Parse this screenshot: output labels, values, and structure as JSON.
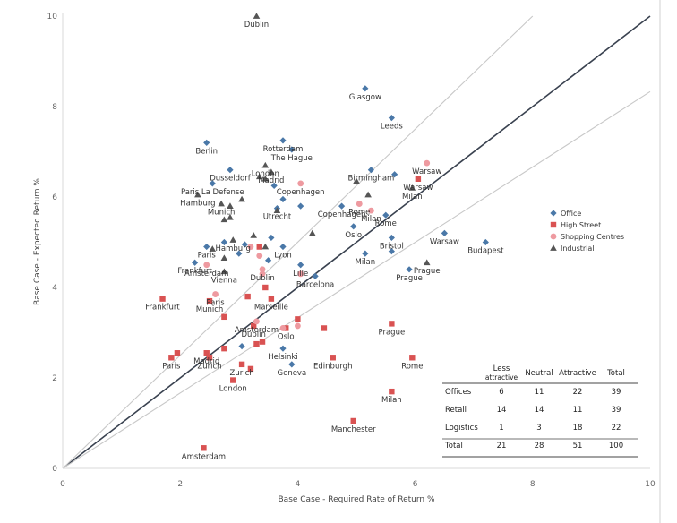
{
  "chart_data": {
    "type": "scatter",
    "title": "",
    "xlabel": "Base Case - Required Rate of Return %",
    "ylabel": "Base Case - Expected Return %",
    "xlim": [
      0,
      10
    ],
    "ylim": [
      0,
      10
    ],
    "xticks": [
      0,
      2,
      4,
      6,
      8,
      10
    ],
    "yticks": [
      0,
      2,
      4,
      6,
      8,
      10
    ],
    "grid": false,
    "legend_position": "right",
    "colors": {
      "Office": "#4a78a8",
      "High Street": "#d95252",
      "Shopping Centres": "#ee9aa0",
      "Industrial": "#555555",
      "diagonal": "#3a4250",
      "band": "#c8c8c8"
    },
    "reference_lines": [
      {
        "label": "",
        "slope": 1.0
      },
      {
        "label": "",
        "slope": 1.25
      },
      {
        "label": "",
        "slope": 0.833
      }
    ],
    "series": [
      {
        "name": "Office",
        "marker": "diamond",
        "points": [
          {
            "x": 5.15,
            "y": 8.4,
            "label": "Glasgow"
          },
          {
            "x": 5.6,
            "y": 7.75,
            "label": "Leeds"
          },
          {
            "x": 3.75,
            "y": 7.25,
            "label": "Rotterdam"
          },
          {
            "x": 3.9,
            "y": 7.05,
            "label": "The Hague"
          },
          {
            "x": 2.45,
            "y": 7.2,
            "label": "Berlin"
          },
          {
            "x": 2.85,
            "y": 6.6,
            "label": "Dusseldorf"
          },
          {
            "x": 2.55,
            "y": 6.3,
            "label": "Paris La Defense"
          },
          {
            "x": 5.25,
            "y": 6.6,
            "label": "Birmingham"
          },
          {
            "x": 5.65,
            "y": 6.5,
            "label": ""
          },
          {
            "x": 3.6,
            "y": 6.25,
            "label": ""
          },
          {
            "x": 3.75,
            "y": 5.95,
            "label": ""
          },
          {
            "x": 3.65,
            "y": 5.75,
            "label": "Utrecht"
          },
          {
            "x": 4.05,
            "y": 5.8,
            "label": ""
          },
          {
            "x": 4.75,
            "y": 5.8,
            "label": "Copenhagen"
          },
          {
            "x": 5.5,
            "y": 5.6,
            "label": "Rome"
          },
          {
            "x": 4.95,
            "y": 5.35,
            "label": "Oslo"
          },
          {
            "x": 5.6,
            "y": 5.1,
            "label": "Bristol"
          },
          {
            "x": 6.5,
            "y": 5.2,
            "label": "Warsaw"
          },
          {
            "x": 7.2,
            "y": 5.0,
            "label": "Budapest"
          },
          {
            "x": 5.15,
            "y": 4.75,
            "label": "Milan"
          },
          {
            "x": 5.6,
            "y": 4.8,
            "label": ""
          },
          {
            "x": 5.9,
            "y": 4.4,
            "label": "Prague"
          },
          {
            "x": 2.45,
            "y": 4.9,
            "label": "Paris"
          },
          {
            "x": 2.75,
            "y": 5.0,
            "label": ""
          },
          {
            "x": 3.1,
            "y": 4.95,
            "label": ""
          },
          {
            "x": 3.55,
            "y": 5.1,
            "label": ""
          },
          {
            "x": 3.75,
            "y": 4.9,
            "label": "Lyon"
          },
          {
            "x": 3.0,
            "y": 4.75,
            "label": ""
          },
          {
            "x": 3.5,
            "y": 4.6,
            "label": ""
          },
          {
            "x": 2.25,
            "y": 4.55,
            "label": "Frankfurt"
          },
          {
            "x": 4.05,
            "y": 4.5,
            "label": "Lille"
          },
          {
            "x": 4.3,
            "y": 4.25,
            "label": "Barcelona"
          },
          {
            "x": 3.75,
            "y": 2.65,
            "label": "Helsinki"
          },
          {
            "x": 3.05,
            "y": 2.7,
            "label": ""
          },
          {
            "x": 3.9,
            "y": 2.3,
            "label": "Geneva"
          }
        ]
      },
      {
        "name": "High Street",
        "marker": "square",
        "points": [
          {
            "x": 6.05,
            "y": 6.4,
            "label": "Warsaw"
          },
          {
            "x": 3.35,
            "y": 4.9,
            "label": ""
          },
          {
            "x": 3.45,
            "y": 4.0,
            "label": ""
          },
          {
            "x": 3.55,
            "y": 3.75,
            "label": "Marseille"
          },
          {
            "x": 3.15,
            "y": 3.8,
            "label": ""
          },
          {
            "x": 1.7,
            "y": 3.75,
            "label": "Frankfurt"
          },
          {
            "x": 2.5,
            "y": 3.7,
            "label": "Munich"
          },
          {
            "x": 2.75,
            "y": 3.35,
            "label": ""
          },
          {
            "x": 3.25,
            "y": 3.15,
            "label": "Dublin"
          },
          {
            "x": 4.0,
            "y": 3.3,
            "label": ""
          },
          {
            "x": 3.8,
            "y": 3.1,
            "label": "Oslo"
          },
          {
            "x": 4.45,
            "y": 3.1,
            "label": ""
          },
          {
            "x": 5.6,
            "y": 3.2,
            "label": "Prague"
          },
          {
            "x": 3.3,
            "y": 2.75,
            "label": ""
          },
          {
            "x": 3.4,
            "y": 2.8,
            "label": ""
          },
          {
            "x": 2.75,
            "y": 2.65,
            "label": ""
          },
          {
            "x": 2.45,
            "y": 2.55,
            "label": "Madrid"
          },
          {
            "x": 1.95,
            "y": 2.55,
            "label": ""
          },
          {
            "x": 1.85,
            "y": 2.45,
            "label": "Paris"
          },
          {
            "x": 2.5,
            "y": 2.45,
            "label": "Zurich"
          },
          {
            "x": 3.05,
            "y": 2.3,
            "label": "Zurich"
          },
          {
            "x": 3.2,
            "y": 2.2,
            "label": ""
          },
          {
            "x": 4.6,
            "y": 2.45,
            "label": "Edinburgh"
          },
          {
            "x": 5.95,
            "y": 2.45,
            "label": "Rome"
          },
          {
            "x": 2.9,
            "y": 1.95,
            "label": "London"
          },
          {
            "x": 5.6,
            "y": 1.7,
            "label": "Milan"
          },
          {
            "x": 4.95,
            "y": 1.05,
            "label": "Manchester"
          },
          {
            "x": 2.4,
            "y": 0.45,
            "label": "Amsterdam"
          }
        ]
      },
      {
        "name": "Shopping Centres",
        "marker": "circle",
        "points": [
          {
            "x": 6.2,
            "y": 6.75,
            "label": "Warsaw"
          },
          {
            "x": 4.05,
            "y": 6.3,
            "label": "Copenhagen"
          },
          {
            "x": 5.05,
            "y": 5.85,
            "label": "Rome"
          },
          {
            "x": 5.25,
            "y": 5.7,
            "label": "Milan"
          },
          {
            "x": 3.2,
            "y": 4.9,
            "label": ""
          },
          {
            "x": 3.35,
            "y": 4.7,
            "label": ""
          },
          {
            "x": 2.45,
            "y": 4.5,
            "label": "Amsterdam"
          },
          {
            "x": 3.4,
            "y": 4.4,
            "label": "Dublin"
          },
          {
            "x": 3.4,
            "y": 4.3,
            "label": ""
          },
          {
            "x": 4.05,
            "y": 4.3,
            "label": ""
          },
          {
            "x": 2.6,
            "y": 3.85,
            "label": "Paris"
          },
          {
            "x": 3.3,
            "y": 3.25,
            "label": "Amsterdam"
          },
          {
            "x": 3.75,
            "y": 3.1,
            "label": ""
          },
          {
            "x": 4.0,
            "y": 3.15,
            "label": ""
          }
        ]
      },
      {
        "name": "Industrial",
        "marker": "triangle",
        "points": [
          {
            "x": 3.3,
            "y": 10.0,
            "label": "Dublin"
          },
          {
            "x": 3.45,
            "y": 6.7,
            "label": "London"
          },
          {
            "x": 3.55,
            "y": 6.55,
            "label": "Madrid"
          },
          {
            "x": 3.35,
            "y": 6.45,
            "label": ""
          },
          {
            "x": 3.45,
            "y": 6.4,
            "label": ""
          },
          {
            "x": 5.0,
            "y": 6.35,
            "label": ""
          },
          {
            "x": 5.95,
            "y": 6.2,
            "label": "Milan"
          },
          {
            "x": 2.3,
            "y": 6.05,
            "label": "Hamburg"
          },
          {
            "x": 5.2,
            "y": 6.05,
            "label": ""
          },
          {
            "x": 3.05,
            "y": 5.95,
            "label": ""
          },
          {
            "x": 2.7,
            "y": 5.85,
            "label": "Munich"
          },
          {
            "x": 2.85,
            "y": 5.8,
            "label": ""
          },
          {
            "x": 3.65,
            "y": 5.7,
            "label": ""
          },
          {
            "x": 2.75,
            "y": 5.5,
            "label": ""
          },
          {
            "x": 2.85,
            "y": 5.55,
            "label": ""
          },
          {
            "x": 4.25,
            "y": 5.2,
            "label": ""
          },
          {
            "x": 2.9,
            "y": 5.05,
            "label": "Hamburg"
          },
          {
            "x": 3.25,
            "y": 5.15,
            "label": ""
          },
          {
            "x": 2.55,
            "y": 4.85,
            "label": ""
          },
          {
            "x": 3.45,
            "y": 4.9,
            "label": ""
          },
          {
            "x": 2.75,
            "y": 4.65,
            "label": ""
          },
          {
            "x": 6.2,
            "y": 4.55,
            "label": "Prague"
          },
          {
            "x": 2.75,
            "y": 4.35,
            "label": "Vienna"
          }
        ]
      }
    ],
    "summary_table": {
      "columns": [
        "",
        "Less attractive",
        "Neutral",
        "Attractive",
        "Total"
      ],
      "rows": [
        [
          "Offices",
          "6",
          "11",
          "22",
          "39"
        ],
        [
          "Retail",
          "14",
          "14",
          "11",
          "39"
        ],
        [
          "Logistics",
          "1",
          "3",
          "18",
          "22"
        ],
        [
          "Total",
          "21",
          "28",
          "51",
          "100"
        ]
      ]
    }
  }
}
